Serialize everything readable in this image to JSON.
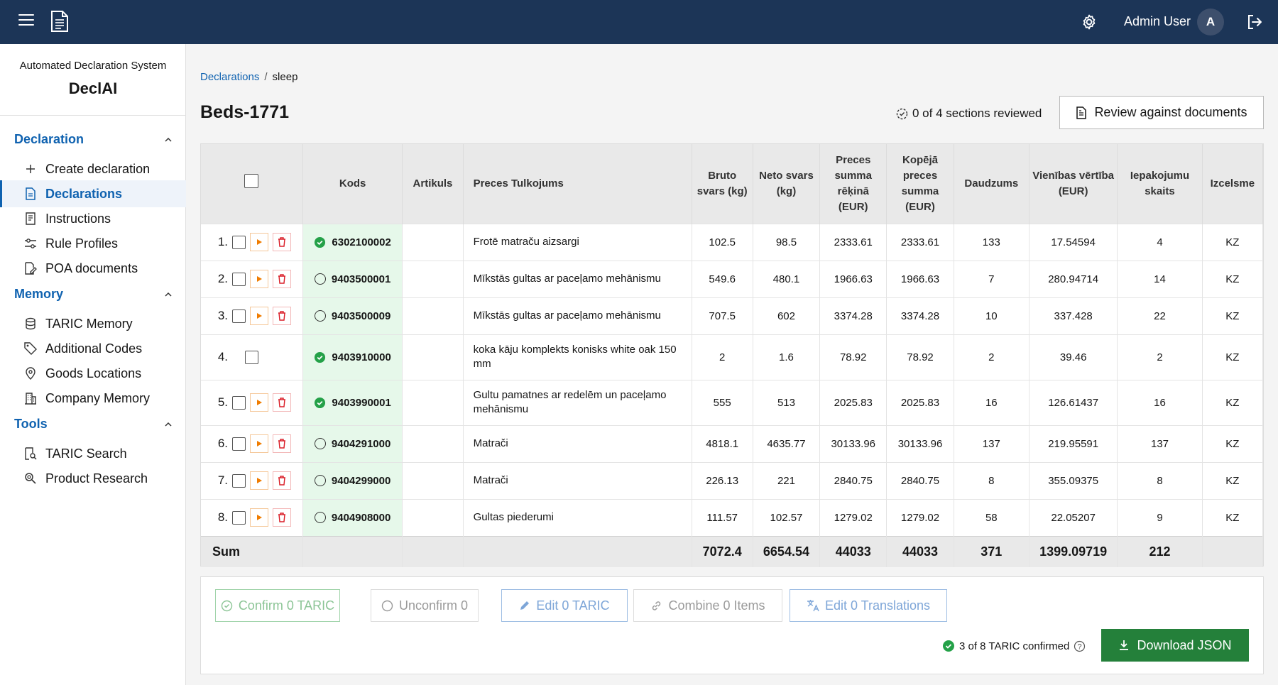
{
  "header": {
    "user_name": "Admin User",
    "avatar_initial": "A",
    "bg_color": "#1c3557"
  },
  "sidebar": {
    "subtitle": "Automated Declaration System",
    "title": "DeclAI",
    "sections": [
      {
        "label": "Declaration",
        "items": [
          {
            "label": "Create declaration",
            "icon": "plus-icon"
          },
          {
            "label": "Declarations",
            "icon": "document-icon",
            "active": true
          },
          {
            "label": "Instructions",
            "icon": "instructions-icon"
          },
          {
            "label": "Rule Profiles",
            "icon": "sliders-icon"
          },
          {
            "label": "POA documents",
            "icon": "document-edit-icon"
          }
        ]
      },
      {
        "label": "Memory",
        "items": [
          {
            "label": "TARIC Memory",
            "icon": "database-icon"
          },
          {
            "label": "Additional Codes",
            "icon": "tag-icon"
          },
          {
            "label": "Goods Locations",
            "icon": "location-icon"
          },
          {
            "label": "Company Memory",
            "icon": "building-icon"
          }
        ]
      },
      {
        "label": "Tools",
        "items": [
          {
            "label": "TARIC Search",
            "icon": "search-document-icon"
          },
          {
            "label": "Product Research",
            "icon": "search-icon"
          }
        ]
      }
    ]
  },
  "breadcrumb": {
    "root": "Declarations",
    "current": "sleep"
  },
  "page": {
    "title": "Beds-1771",
    "review_status": "0 of 4 sections reviewed",
    "review_button": "Review against documents"
  },
  "table": {
    "columns": [
      "Kods",
      "Artikuls",
      "Preces Tulkojums",
      "Bruto svars (kg)",
      "Neto svars (kg)",
      "Preces summa rēķinā (EUR)",
      "Kopējā preces summa (EUR)",
      "Daudzums",
      "Vienības vērtība (EUR)",
      "Iepakojumu skaits",
      "Izcelsme"
    ],
    "rows": [
      {
        "num": "1.",
        "kods": "6302100002",
        "confirmed": true,
        "artikuls": "",
        "desc": "Frotē matraču aizsargi",
        "bruto": "102.5",
        "neto": "98.5",
        "summa": "2333.61",
        "kopeja": "2333.61",
        "daudzums": "133",
        "vieniba": "17.54594",
        "iepak": "4",
        "izcelsme": "KZ"
      },
      {
        "num": "2.",
        "kods": "9403500001",
        "confirmed": false,
        "artikuls": "",
        "desc": "Mīkstās gultas ar paceļamo mehānismu",
        "bruto": "549.6",
        "neto": "480.1",
        "summa": "1966.63",
        "kopeja": "1966.63",
        "daudzums": "7",
        "vieniba": "280.94714",
        "iepak": "14",
        "izcelsme": "KZ"
      },
      {
        "num": "3.",
        "kods": "9403500009",
        "confirmed": false,
        "artikuls": "",
        "desc": "Mīkstās gultas ar paceļamo mehānismu",
        "bruto": "707.5",
        "neto": "602",
        "summa": "3374.28",
        "kopeja": "3374.28",
        "daudzums": "10",
        "vieniba": "337.428",
        "iepak": "22",
        "izcelsme": "KZ"
      },
      {
        "num": "4.",
        "kods": "9403910000",
        "confirmed": true,
        "artikuls": "",
        "desc": "koka kāju komplekts konisks white oak 150 mm",
        "bruto": "2",
        "neto": "1.6",
        "summa": "78.92",
        "kopeja": "78.92",
        "daudzums": "2",
        "vieniba": "39.46",
        "iepak": "2",
        "izcelsme": "KZ"
      },
      {
        "num": "5.",
        "kods": "9403990001",
        "confirmed": true,
        "artikuls": "",
        "desc": "Gultu pamatnes ar redelēm un paceļamo mehānismu",
        "bruto": "555",
        "neto": "513",
        "summa": "2025.83",
        "kopeja": "2025.83",
        "daudzums": "16",
        "vieniba": "126.61437",
        "iepak": "16",
        "izcelsme": "KZ"
      },
      {
        "num": "6.",
        "kods": "9404291000",
        "confirmed": false,
        "artikuls": "",
        "desc": "Matrači",
        "bruto": "4818.1",
        "neto": "4635.77",
        "summa": "30133.96",
        "kopeja": "30133.96",
        "daudzums": "137",
        "vieniba": "219.95591",
        "iepak": "137",
        "izcelsme": "KZ"
      },
      {
        "num": "7.",
        "kods": "9404299000",
        "confirmed": false,
        "artikuls": "",
        "desc": "Matrači",
        "bruto": "226.13",
        "neto": "221",
        "summa": "2840.75",
        "kopeja": "2840.75",
        "daudzums": "8",
        "vieniba": "355.09375",
        "iepak": "8",
        "izcelsme": "KZ"
      },
      {
        "num": "8.",
        "kods": "9404908000",
        "confirmed": false,
        "artikuls": "",
        "desc": "Gultas piederumi",
        "bruto": "111.57",
        "neto": "102.57",
        "summa": "1279.02",
        "kopeja": "1279.02",
        "daudzums": "58",
        "vieniba": "22.05207",
        "iepak": "9",
        "izcelsme": "KZ"
      }
    ],
    "sum": {
      "label": "Sum",
      "bruto": "7072.4",
      "neto": "6654.54",
      "summa": "44033",
      "kopeja": "44033",
      "daudzums": "371",
      "vieniba": "1399.09719",
      "iepak": "212"
    }
  },
  "actions": {
    "confirm": "Confirm 0 TARIC",
    "unconfirm": "Unconfirm 0",
    "edit": "Edit 0 TARIC",
    "combine": "Combine 0 Items",
    "translations": "Edit 0 Translations",
    "taric_status": "3 of 8 TARIC confirmed",
    "download": "Download JSON"
  },
  "colors": {
    "accent": "#0f62b0",
    "confirmed_green": "#24803a",
    "kods_bg": "#e6f8ea",
    "delete_red": "#da1e28",
    "play_orange": "#f07c00"
  }
}
